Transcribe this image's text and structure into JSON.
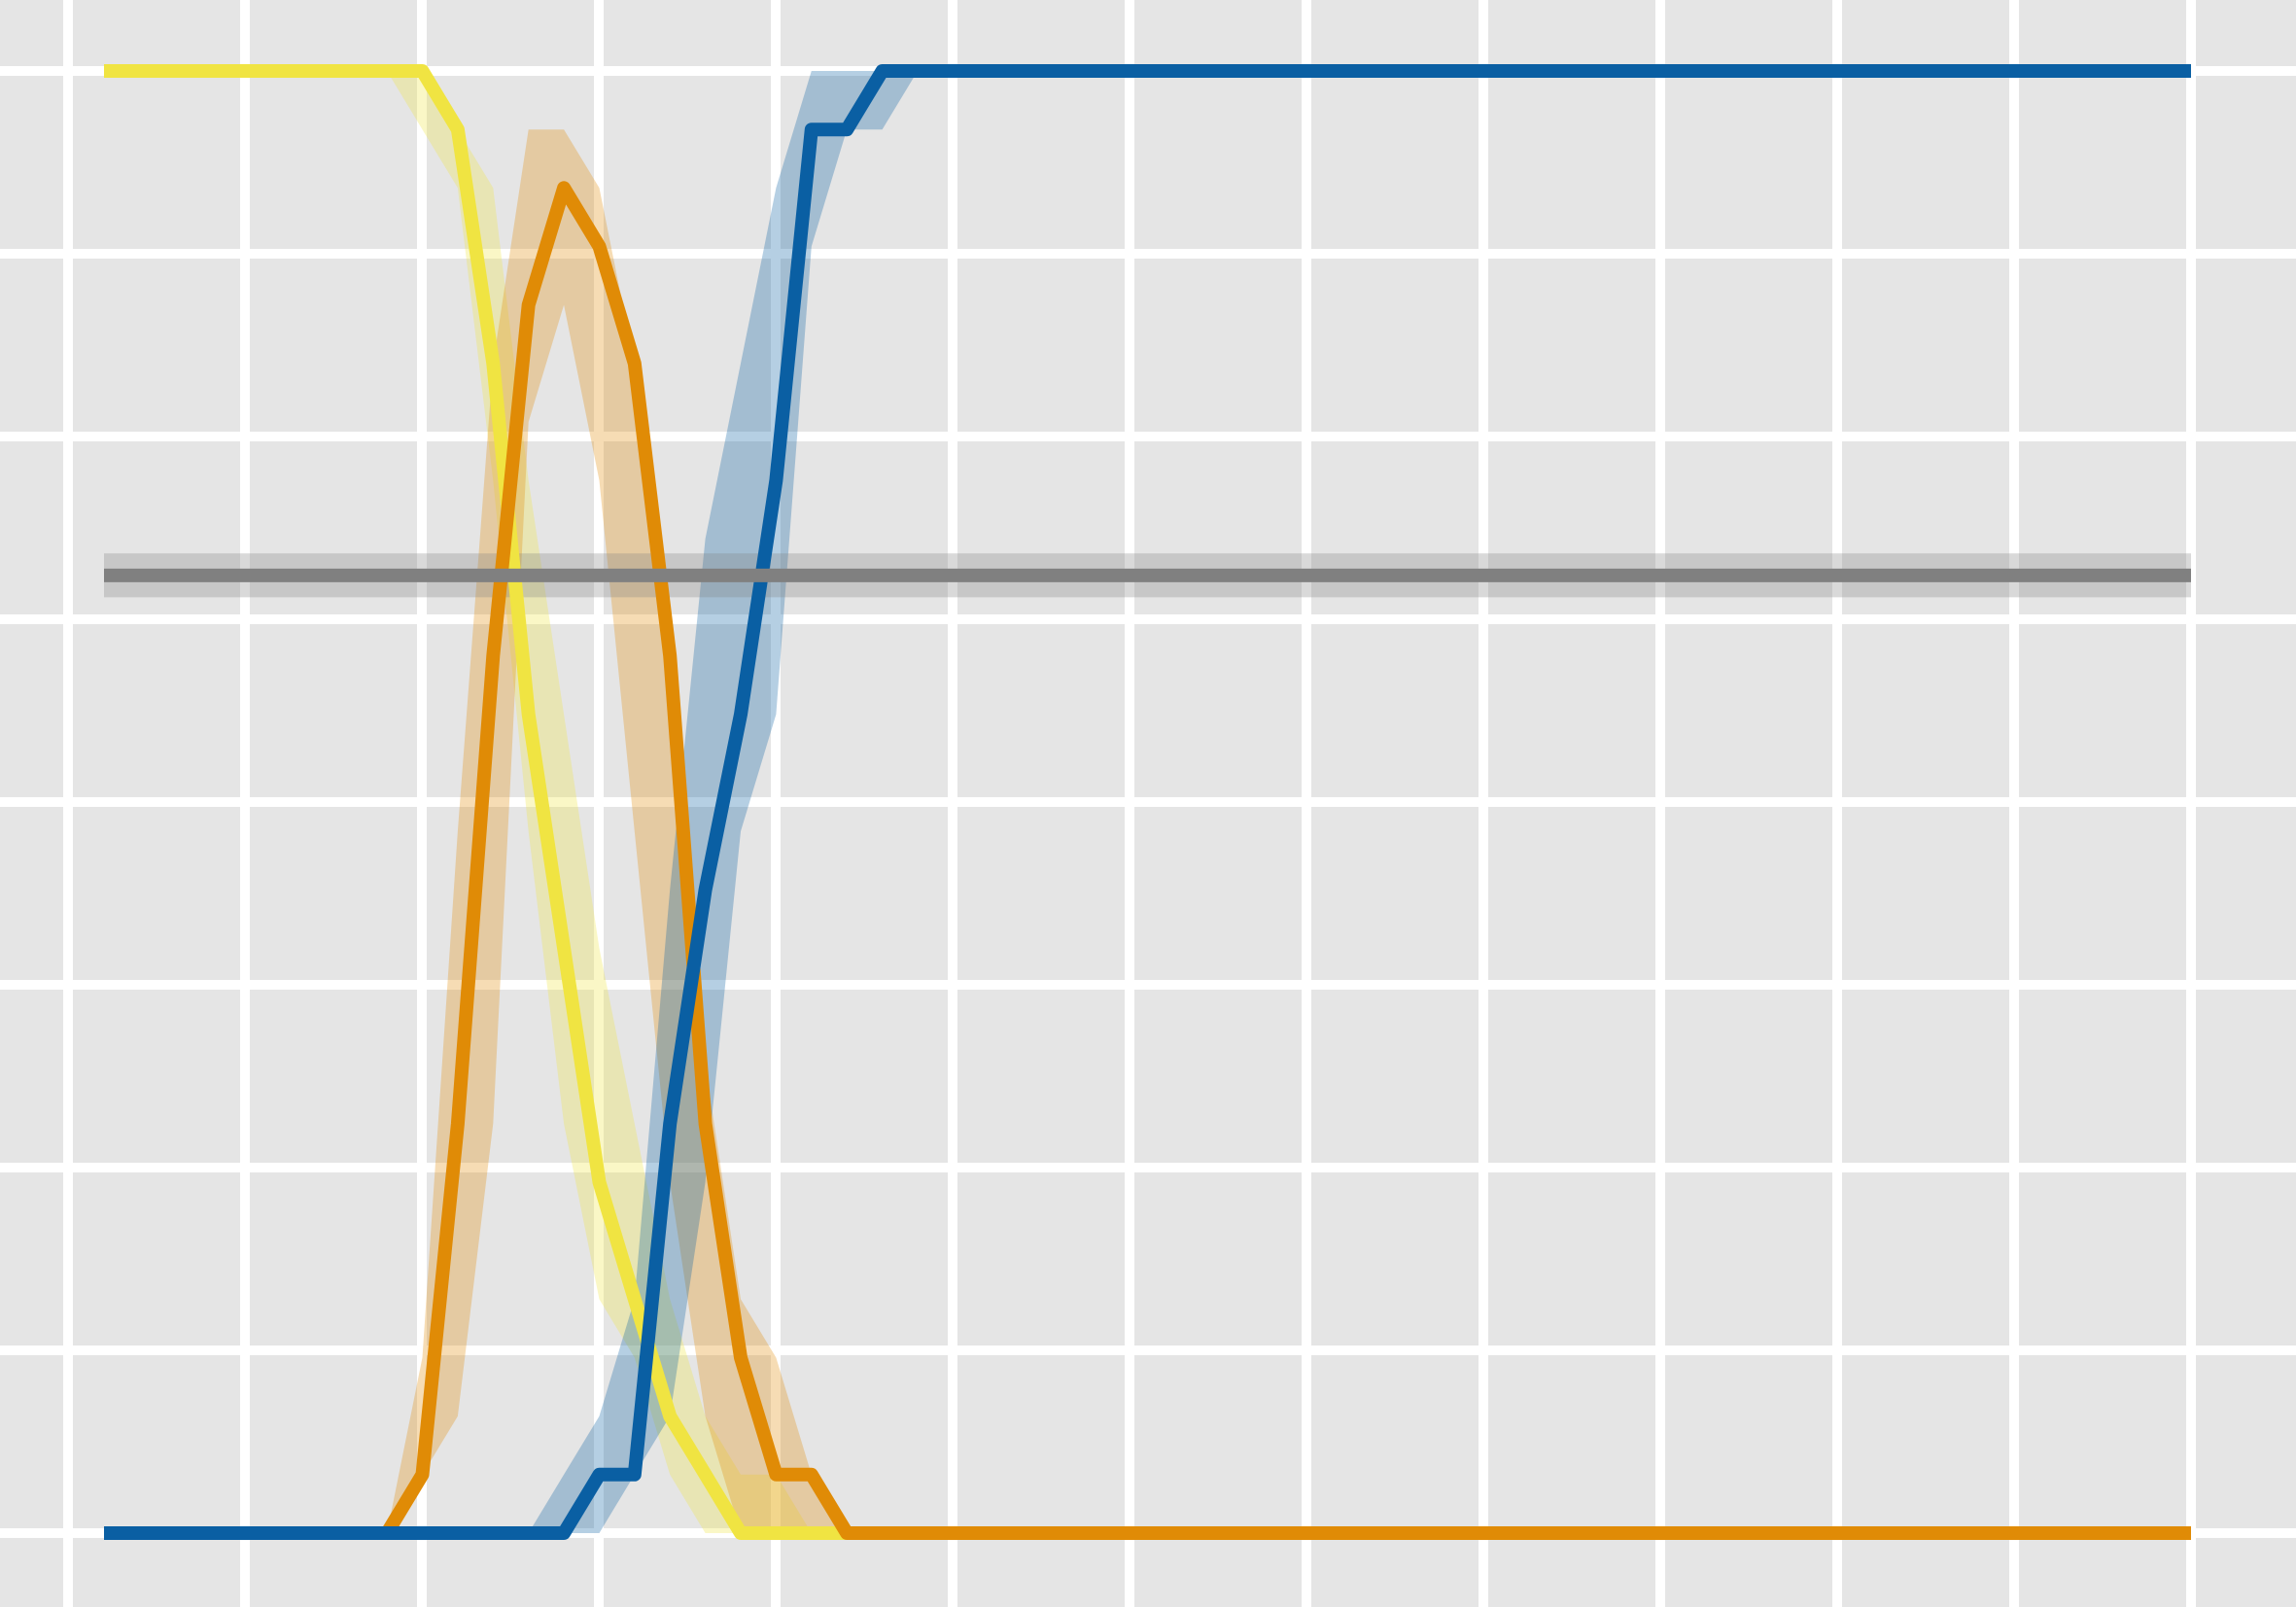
{
  "chart_data": {
    "type": "line",
    "title": "",
    "xlabel": "",
    "ylabel": "",
    "xlim": [
      -0.2,
      12.7
    ],
    "ylim": [
      -0.04,
      1.005
    ],
    "grid": true,
    "x": [
      0,
      0.2,
      0.4,
      0.6,
      0.8,
      1.0,
      1.2,
      1.4,
      1.6,
      1.8,
      2.0,
      2.2,
      2.4,
      2.6,
      2.8,
      3.0,
      3.2,
      3.4,
      3.6,
      3.8,
      4.0,
      4.2,
      4.4,
      4.6,
      4.8,
      5.0,
      5.2,
      5.4,
      5.6,
      5.8,
      6.0,
      6.2,
      6.4,
      6.6,
      6.8,
      7.0,
      7.2,
      7.4,
      7.6,
      7.8,
      8.0,
      8.2,
      8.4,
      8.6,
      8.8,
      9.0,
      9.2,
      9.4,
      9.6,
      9.8,
      10.0,
      10.2,
      10.4,
      10.6,
      10.8,
      11.0,
      11.2,
      11.4,
      11.6,
      11.8
    ],
    "series": [
      {
        "color": "#f0e442",
        "values": [
          1,
          1,
          1,
          1,
          1,
          1,
          1,
          1,
          1,
          1,
          0.96,
          0.8,
          0.56,
          0.4,
          0.24,
          0.16,
          0.08,
          0.04,
          0.0,
          0.0,
          0.0,
          0.0,
          0.0,
          0.0,
          0.0,
          0.0,
          0.0,
          0.0,
          0.0,
          0.0,
          0,
          0,
          0,
          0,
          0,
          0,
          0,
          0,
          0,
          0,
          0,
          0,
          0,
          0,
          0,
          0,
          0,
          0,
          0,
          0,
          0,
          0,
          0,
          0,
          0,
          0,
          0,
          0,
          0,
          0
        ],
        "band_low": [
          1,
          1,
          1,
          1,
          1,
          1,
          1,
          1,
          1,
          0.96,
          0.92,
          0.72,
          0.48,
          0.28,
          0.16,
          0.12,
          0.04,
          0.0,
          0.0,
          0.0,
          0.0,
          0.0,
          0.0,
          0.0,
          0.0,
          0.0,
          0.0,
          0.0,
          0.0,
          0.0,
          0,
          0,
          0,
          0,
          0,
          0,
          0,
          0,
          0,
          0,
          0,
          0,
          0,
          0,
          0,
          0,
          0,
          0,
          0,
          0,
          0,
          0,
          0,
          0,
          0,
          0,
          0,
          0,
          0,
          0
        ],
        "band_high": [
          1,
          1,
          1,
          1,
          1,
          1,
          1,
          1,
          1,
          1,
          0.96,
          0.92,
          0.72,
          0.56,
          0.4,
          0.28,
          0.16,
          0.08,
          0.04,
          0.04,
          0.0,
          0.0,
          0.0,
          0.0,
          0.0,
          0.0,
          0.0,
          0.0,
          0.0,
          0.0,
          0,
          0,
          0,
          0,
          0,
          0,
          0,
          0,
          0,
          0,
          0,
          0,
          0,
          0,
          0,
          0,
          0,
          0,
          0,
          0,
          0,
          0,
          0,
          0,
          0,
          0,
          0,
          0,
          0,
          0
        ]
      },
      {
        "color": "#e08b06",
        "values": [
          0,
          0,
          0,
          0,
          0,
          0,
          0,
          0,
          0,
          0.04,
          0.28,
          0.6,
          0.84,
          0.92,
          0.88,
          0.8,
          0.6,
          0.28,
          0.12,
          0.04,
          0.04,
          0.0,
          0.0,
          0.0,
          0.0,
          0.0,
          0.0,
          0.0,
          0.0,
          0.0,
          0,
          0,
          0,
          0,
          0,
          0,
          0,
          0,
          0,
          0,
          0,
          0,
          0,
          0,
          0,
          0,
          0,
          0,
          0,
          0,
          0,
          0,
          0,
          0,
          0,
          0,
          0,
          0,
          0,
          0
        ],
        "band_low": [
          0,
          0,
          0,
          0,
          0,
          0,
          0,
          0,
          0,
          0.04,
          0.08,
          0.28,
          0.76,
          0.84,
          0.72,
          0.48,
          0.24,
          0.08,
          0.0,
          0.0,
          0.0,
          0.0,
          0.0,
          0.0,
          0.0,
          0.0,
          0.0,
          0.0,
          0.0,
          0.0,
          0,
          0,
          0,
          0,
          0,
          0,
          0,
          0,
          0,
          0,
          0,
          0,
          0,
          0,
          0,
          0,
          0,
          0,
          0,
          0,
          0,
          0,
          0,
          0,
          0,
          0,
          0,
          0,
          0,
          0
        ],
        "band_high": [
          0,
          0,
          0,
          0,
          0,
          0,
          0,
          0,
          0,
          0.12,
          0.48,
          0.8,
          0.96,
          0.96,
          0.92,
          0.8,
          0.6,
          0.32,
          0.16,
          0.12,
          0.04,
          0.0,
          0.0,
          0.0,
          0.0,
          0.0,
          0.0,
          0.0,
          0.0,
          0.0,
          0,
          0,
          0,
          0,
          0,
          0,
          0,
          0,
          0,
          0,
          0,
          0,
          0,
          0,
          0,
          0,
          0,
          0,
          0,
          0,
          0,
          0,
          0,
          0,
          0,
          0,
          0,
          0,
          0,
          0
        ]
      },
      {
        "color": "#0a5fa3",
        "values": [
          0,
          0,
          0,
          0,
          0,
          0,
          0,
          0,
          0,
          0,
          0,
          0,
          0,
          0,
          0.04,
          0.04,
          0.28,
          0.44,
          0.56,
          0.72,
          0.96,
          0.96,
          1,
          1,
          1,
          1,
          1,
          1,
          1,
          1,
          1,
          1,
          1,
          1,
          1,
          1,
          1,
          1,
          1,
          1,
          1,
          1,
          1,
          1,
          1,
          1,
          1,
          1,
          1,
          1,
          1,
          1,
          1,
          1,
          1,
          1,
          1,
          1,
          1,
          1
        ],
        "band_low": [
          0,
          0,
          0,
          0,
          0,
          0,
          0,
          0,
          0,
          0,
          0,
          0,
          0,
          0,
          0.0,
          0.04,
          0.08,
          0.24,
          0.48,
          0.56,
          0.88,
          0.96,
          0.96,
          1,
          1,
          1,
          1,
          1,
          1,
          1,
          1,
          1,
          1,
          1,
          1,
          1,
          1,
          1,
          1,
          1,
          1,
          1,
          1,
          1,
          1,
          1,
          1,
          1,
          1,
          1,
          1,
          1,
          1,
          1,
          1,
          1,
          1,
          1,
          1,
          1
        ],
        "band_high": [
          0,
          0,
          0,
          0,
          0,
          0,
          0,
          0,
          0,
          0,
          0,
          0,
          0,
          0.04,
          0.08,
          0.16,
          0.44,
          0.68,
          0.8,
          0.92,
          1,
          1,
          1,
          1,
          1,
          1,
          1,
          1,
          1,
          1,
          1,
          1,
          1,
          1,
          1,
          1,
          1,
          1,
          1,
          1,
          1,
          1,
          1,
          1,
          1,
          1,
          1,
          1,
          1,
          1,
          1,
          1,
          1,
          1,
          1,
          1,
          1,
          1,
          1,
          1
        ]
      },
      {
        "color": "#808080",
        "values": [
          0.655,
          0.655,
          0.655,
          0.655,
          0.655,
          0.655,
          0.655,
          0.655,
          0.655,
          0.655,
          0.655,
          0.655,
          0.655,
          0.655,
          0.655,
          0.655,
          0.655,
          0.655,
          0.655,
          0.655,
          0.655,
          0.655,
          0.655,
          0.655,
          0.655,
          0.655,
          0.655,
          0.655,
          0.655,
          0.655,
          0.655,
          0.655,
          0.655,
          0.655,
          0.655,
          0.655,
          0.655,
          0.655,
          0.655,
          0.655,
          0.655,
          0.655,
          0.655,
          0.655,
          0.655,
          0.655,
          0.655,
          0.655,
          0.655,
          0.655,
          0.655,
          0.655,
          0.655,
          0.655,
          0.655,
          0.655,
          0.655,
          0.655,
          0.655,
          0.655
        ],
        "band_low": [
          0.64,
          0.64,
          0.64,
          0.64,
          0.64,
          0.64,
          0.64,
          0.64,
          0.64,
          0.64,
          0.64,
          0.64,
          0.64,
          0.64,
          0.64,
          0.64,
          0.64,
          0.64,
          0.64,
          0.64,
          0.64,
          0.64,
          0.64,
          0.64,
          0.64,
          0.64,
          0.64,
          0.64,
          0.64,
          0.64,
          0.64,
          0.64,
          0.64,
          0.64,
          0.64,
          0.64,
          0.64,
          0.64,
          0.64,
          0.64,
          0.64,
          0.64,
          0.64,
          0.64,
          0.64,
          0.64,
          0.64,
          0.64,
          0.64,
          0.64,
          0.64,
          0.64,
          0.64,
          0.64,
          0.64,
          0.64,
          0.64,
          0.64,
          0.64,
          0.64
        ],
        "band_high": [
          0.67,
          0.67,
          0.67,
          0.67,
          0.67,
          0.67,
          0.67,
          0.67,
          0.67,
          0.67,
          0.67,
          0.67,
          0.67,
          0.67,
          0.67,
          0.67,
          0.67,
          0.67,
          0.67,
          0.67,
          0.67,
          0.67,
          0.67,
          0.67,
          0.67,
          0.67,
          0.67,
          0.67,
          0.67,
          0.67,
          0.67,
          0.67,
          0.67,
          0.67,
          0.67,
          0.67,
          0.67,
          0.67,
          0.67,
          0.67,
          0.67,
          0.67,
          0.67,
          0.67,
          0.67,
          0.67,
          0.67,
          0.67,
          0.67,
          0.67,
          0.67,
          0.67,
          0.67,
          0.67,
          0.67,
          0.67,
          0.67,
          0.67,
          0.67,
          0.67
        ]
      }
    ]
  },
  "style": {
    "background": "#e5e5e5",
    "grid_color": "#ffffff"
  }
}
